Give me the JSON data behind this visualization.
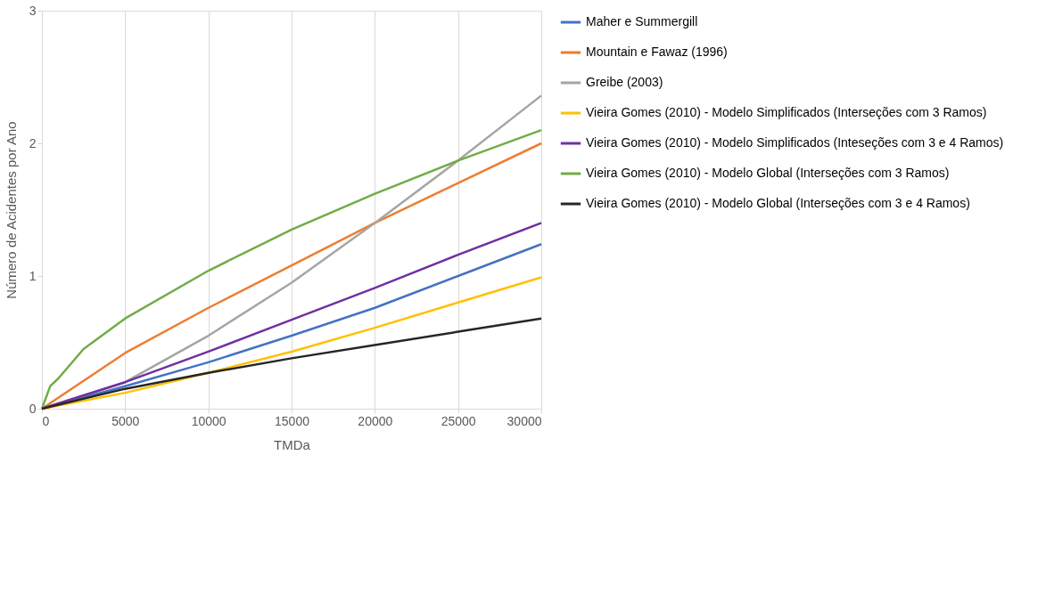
{
  "chart_data": {
    "type": "line",
    "xlabel": "TMDa",
    "ylabel": "Número de Acidentes por Ano",
    "xlim": [
      0,
      30000
    ],
    "xticks": [
      0,
      5000,
      10000,
      15000,
      20000,
      25000,
      30000
    ],
    "ylim": [
      0,
      3
    ],
    "yticks": [
      0,
      1,
      2,
      3
    ],
    "grid": "x",
    "legend": "right",
    "marker": "none",
    "line_style": "solid",
    "series": [
      {
        "name": "Maher e Summergill",
        "color": "#4472c4",
        "x": [
          0,
          5000,
          10000,
          15000,
          20000,
          25000,
          30000
        ],
        "values": [
          0,
          0.17,
          0.35,
          0.55,
          0.76,
          1.0,
          1.24
        ]
      },
      {
        "name": "Mountain e Fawaz (1996)",
        "color": "#ed7d31",
        "x": [
          0,
          5000,
          10000,
          15000,
          20000,
          25000,
          30000
        ],
        "values": [
          0,
          0.42,
          0.76,
          1.08,
          1.4,
          1.7,
          2.0
        ]
      },
      {
        "name": "Greibe (2003)",
        "color": "#a5a5a5",
        "x": [
          0,
          5000,
          10000,
          15000,
          20000,
          25000,
          30000
        ],
        "values": [
          0,
          0.2,
          0.55,
          0.95,
          1.4,
          1.87,
          2.36
        ]
      },
      {
        "name": "Vieira Gomes (2010) - Modelo Simplificados (Interseções com 3 Ramos)",
        "color": "#ffc000",
        "x": [
          0,
          5000,
          10000,
          15000,
          20000,
          25000,
          30000
        ],
        "values": [
          0,
          0.12,
          0.27,
          0.43,
          0.61,
          0.8,
          0.99
        ]
      },
      {
        "name": "Vieira Gomes (2010) - Modelo Simplificados (Inteseções com 3 e 4 Ramos)",
        "color": "#7030a0",
        "x": [
          0,
          5000,
          10000,
          15000,
          20000,
          25000,
          30000
        ],
        "values": [
          0,
          0.2,
          0.43,
          0.67,
          0.91,
          1.16,
          1.4
        ]
      },
      {
        "name": "Vieira Gomes (2010) - Modelo Global (Interseções com 3 Ramos)",
        "color": "#70ad47",
        "x": [
          0,
          500,
          1000,
          2500,
          5000,
          10000,
          15000,
          20000,
          25000,
          30000
        ],
        "values": [
          0,
          0.17,
          0.23,
          0.45,
          0.68,
          1.04,
          1.35,
          1.62,
          1.87,
          2.1
        ]
      },
      {
        "name": "Vieira Gomes (2010) - Modelo Global (Interseções com 3 e 4 Ramos)",
        "color": "#262626",
        "x": [
          0,
          5000,
          10000,
          15000,
          20000,
          25000,
          30000
        ],
        "values": [
          0,
          0.15,
          0.27,
          0.38,
          0.48,
          0.58,
          0.68
        ]
      }
    ]
  }
}
